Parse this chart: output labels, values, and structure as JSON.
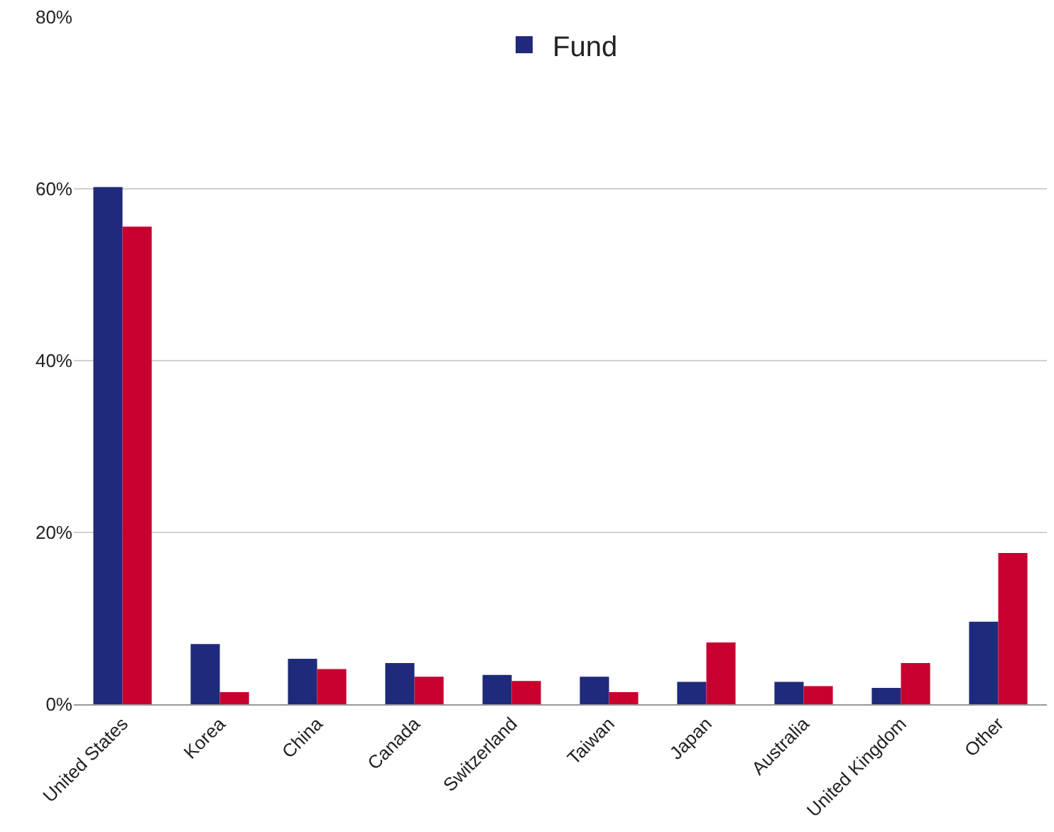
{
  "chart_data": {
    "type": "bar",
    "categories": [
      "United States",
      "Korea",
      "China",
      "Canada",
      "Switzerland",
      "Taiwan",
      "Japan",
      "Australia",
      "United Kingdom",
      "Other"
    ],
    "series": [
      {
        "name": "Fund",
        "color": "#1f2a7a",
        "values": [
          60.2,
          7.0,
          5.3,
          4.8,
          3.4,
          3.2,
          2.6,
          2.6,
          1.9,
          9.6
        ]
      },
      {
        "color": "#c8002f",
        "values": [
          55.6,
          1.4,
          4.1,
          3.2,
          2.7,
          1.4,
          7.2,
          2.1,
          4.8,
          17.6
        ]
      }
    ],
    "ylim": [
      0,
      80
    ],
    "yticks": [
      {
        "value": 0,
        "label": "0%"
      },
      {
        "value": 20,
        "label": "20%"
      },
      {
        "value": 40,
        "label": "40%"
      },
      {
        "value": 60,
        "label": "60%"
      },
      {
        "value": 80,
        "label": "80%"
      }
    ],
    "grid": "y",
    "legend": "top"
  }
}
